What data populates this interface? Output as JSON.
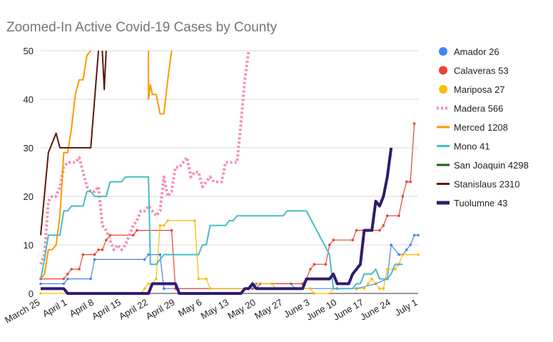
{
  "chart_data": {
    "type": "line",
    "title": "Zoomed-In Active Covid-19 Cases by County",
    "xlabel": "",
    "ylabel": "",
    "ylim": [
      0,
      50
    ],
    "yticks": [
      0,
      10,
      20,
      30,
      40,
      50
    ],
    "x_tick_labels": [
      "March 25",
      "April 1",
      "April 8",
      "April 15",
      "April 22",
      "April 29",
      "May 6",
      "May 13",
      "May 20",
      "May 27",
      "June 3",
      "June 10",
      "June 17",
      "June 24",
      "July 1"
    ],
    "x_tick_days": [
      0,
      7,
      14,
      21,
      28,
      35,
      42,
      49,
      56,
      63,
      70,
      77,
      84,
      91,
      98
    ],
    "grid": "horizontal",
    "legend_position": "right",
    "series": [
      {
        "name": "Amador 26",
        "color": "#4285f4",
        "style": "dotted",
        "points": [
          [
            0,
            2
          ],
          [
            6,
            2
          ],
          [
            7,
            3
          ],
          [
            13,
            3
          ],
          [
            14,
            7
          ],
          [
            27,
            7
          ],
          [
            28,
            8
          ],
          [
            31,
            8
          ],
          [
            32,
            1
          ],
          [
            55,
            1
          ],
          [
            56,
            2
          ],
          [
            65,
            2
          ],
          [
            66,
            1
          ],
          [
            77,
            1
          ],
          [
            82,
            1
          ],
          [
            87,
            2
          ],
          [
            90,
            3
          ],
          [
            91,
            10
          ],
          [
            93,
            8
          ],
          [
            94,
            8
          ],
          [
            95,
            9
          ],
          [
            96,
            10
          ],
          [
            97,
            12
          ],
          [
            98,
            12
          ]
        ]
      },
      {
        "name": "Calaveras 53",
        "color": "#ea4335",
        "style": "dotted",
        "points": [
          [
            0,
            3
          ],
          [
            6,
            3
          ],
          [
            7,
            4
          ],
          [
            8,
            5
          ],
          [
            10,
            5
          ],
          [
            11,
            8
          ],
          [
            14,
            8
          ],
          [
            15,
            9
          ],
          [
            16,
            9
          ],
          [
            17,
            11
          ],
          [
            18,
            12
          ],
          [
            24,
            12
          ],
          [
            25,
            13
          ],
          [
            34,
            13
          ],
          [
            35,
            1
          ],
          [
            56,
            1
          ],
          [
            57,
            2
          ],
          [
            68,
            2
          ],
          [
            69,
            3
          ],
          [
            70,
            5
          ],
          [
            71,
            6
          ],
          [
            74,
            6
          ],
          [
            75,
            10
          ],
          [
            76,
            11
          ],
          [
            81,
            11
          ],
          [
            82,
            13
          ],
          [
            88,
            13
          ],
          [
            89,
            14
          ],
          [
            90,
            16
          ],
          [
            93,
            16
          ],
          [
            94,
            20
          ],
          [
            95,
            23
          ],
          [
            96,
            23
          ],
          [
            97,
            35
          ]
        ]
      },
      {
        "name": "Mariposa 27",
        "color": "#fbbc04",
        "style": "dotted",
        "points": [
          [
            0,
            0
          ],
          [
            26,
            0
          ],
          [
            27,
            1
          ],
          [
            28,
            2
          ],
          [
            29,
            2
          ],
          [
            30,
            3
          ],
          [
            31,
            14
          ],
          [
            32,
            14
          ],
          [
            33,
            15
          ],
          [
            40,
            15
          ],
          [
            41,
            3
          ],
          [
            43,
            3
          ],
          [
            44,
            1
          ],
          [
            54,
            1
          ],
          [
            55,
            2
          ],
          [
            60,
            2
          ],
          [
            61,
            1
          ],
          [
            70,
            1
          ],
          [
            71,
            0
          ],
          [
            75,
            0
          ],
          [
            76,
            1
          ],
          [
            84,
            1
          ],
          [
            85,
            2
          ],
          [
            86,
            3
          ],
          [
            88,
            1
          ],
          [
            89,
            1
          ],
          [
            90,
            5
          ],
          [
            92,
            5
          ],
          [
            93,
            6
          ],
          [
            94,
            8
          ],
          [
            98,
            8
          ]
        ]
      },
      {
        "name": "Madera 566",
        "color": "#f48fb1",
        "style": "dashed",
        "points": [
          [
            0,
            6
          ],
          [
            1,
            8
          ],
          [
            2,
            19
          ],
          [
            3,
            20
          ],
          [
            4,
            20
          ],
          [
            5,
            22
          ],
          [
            6,
            26
          ],
          [
            7,
            27
          ],
          [
            8,
            27
          ],
          [
            9,
            27
          ],
          [
            10,
            28
          ],
          [
            11,
            25
          ],
          [
            12,
            22
          ],
          [
            13,
            21
          ],
          [
            14,
            21
          ],
          [
            15,
            22
          ],
          [
            16,
            14
          ],
          [
            17,
            13
          ],
          [
            18,
            11
          ],
          [
            19,
            9
          ],
          [
            20,
            10
          ],
          [
            21,
            9
          ],
          [
            22,
            10
          ],
          [
            23,
            12
          ],
          [
            24,
            14
          ],
          [
            25,
            15
          ],
          [
            26,
            17
          ],
          [
            27,
            17
          ],
          [
            28,
            18
          ],
          [
            29,
            17
          ],
          [
            30,
            16
          ],
          [
            31,
            17
          ],
          [
            32,
            24
          ],
          [
            33,
            20
          ],
          [
            34,
            21
          ],
          [
            35,
            26
          ],
          [
            36,
            26
          ],
          [
            37,
            27
          ],
          [
            38,
            28
          ],
          [
            39,
            24
          ],
          [
            40,
            25
          ],
          [
            41,
            25
          ],
          [
            42,
            22
          ],
          [
            43,
            23
          ],
          [
            44,
            24
          ],
          [
            45,
            23
          ],
          [
            46,
            23
          ],
          [
            47,
            23
          ],
          [
            48,
            27
          ],
          [
            49,
            27
          ],
          [
            50,
            27
          ],
          [
            51,
            27
          ],
          [
            52,
            35
          ],
          [
            53,
            44
          ],
          [
            54,
            51
          ]
        ]
      },
      {
        "name": "Merced 1208",
        "color": "#ff9800",
        "style": "solid",
        "points": [
          [
            0,
            3
          ],
          [
            1,
            4
          ],
          [
            2,
            9
          ],
          [
            3,
            9
          ],
          [
            4,
            10
          ],
          [
            5,
            16
          ],
          [
            6,
            29
          ],
          [
            7,
            29
          ],
          [
            8,
            34
          ],
          [
            9,
            41
          ],
          [
            10,
            44
          ],
          [
            11,
            44
          ],
          [
            12,
            49
          ],
          [
            13,
            51
          ],
          null,
          [
            28,
            51
          ],
          [
            28,
            40
          ],
          [
            28.5,
            43
          ],
          [
            29,
            41
          ],
          [
            30,
            41
          ],
          [
            31,
            37
          ],
          [
            32,
            37
          ],
          [
            33,
            44
          ],
          [
            34,
            51
          ]
        ]
      },
      {
        "name": "Mono 41",
        "color": "#46bdc6",
        "style": "solid",
        "points": [
          [
            0,
            3
          ],
          [
            1,
            7
          ],
          [
            2,
            12
          ],
          [
            5,
            12
          ],
          [
            6,
            17
          ],
          [
            7,
            17
          ],
          [
            8,
            18
          ],
          [
            11,
            18
          ],
          [
            12,
            21
          ],
          [
            13,
            21
          ],
          [
            14,
            20
          ],
          [
            17,
            20
          ],
          [
            18,
            23
          ],
          [
            21,
            23
          ],
          [
            22,
            24
          ],
          [
            28,
            24
          ],
          [
            28.5,
            6
          ],
          [
            30,
            6
          ],
          [
            32,
            8
          ],
          [
            41,
            8
          ],
          [
            42,
            10
          ],
          [
            43,
            10
          ],
          [
            44,
            14
          ],
          [
            48,
            14
          ],
          [
            49,
            15
          ],
          [
            50,
            15
          ],
          [
            51,
            16
          ],
          [
            63,
            16
          ],
          [
            64,
            17
          ],
          [
            69,
            17
          ],
          [
            75,
            8
          ],
          [
            76,
            1
          ],
          [
            81,
            1
          ],
          [
            82,
            2
          ],
          [
            83,
            2
          ],
          [
            84,
            4
          ],
          [
            86,
            4
          ],
          [
            87,
            5
          ],
          [
            88,
            3
          ],
          [
            90,
            3
          ],
          [
            91,
            4
          ],
          [
            92,
            6
          ],
          [
            94,
            6
          ]
        ]
      },
      {
        "name": "San Joaquin 4298",
        "color": "#1e5e1a",
        "style": "solid",
        "points": []
      },
      {
        "name": "Stanislaus 2310",
        "color": "#5b1a0e",
        "style": "solid",
        "points": [
          [
            0,
            12
          ],
          [
            2,
            29
          ],
          [
            3,
            31
          ],
          [
            4,
            33
          ],
          [
            5,
            30
          ],
          [
            13,
            30
          ],
          [
            14,
            40
          ],
          [
            15,
            51
          ],
          null,
          [
            16,
            51
          ],
          [
            16.5,
            42
          ],
          [
            17,
            51
          ]
        ]
      },
      {
        "name": "Tuolumne 43",
        "color": "#311b72",
        "style": "solid",
        "points": [
          [
            0,
            1
          ],
          [
            6,
            1
          ],
          [
            7,
            0
          ],
          [
            28,
            0
          ],
          [
            29,
            2
          ],
          [
            35,
            2
          ],
          [
            36,
            0
          ],
          [
            52,
            0
          ],
          [
            53,
            1
          ],
          [
            54,
            1
          ],
          [
            55,
            2
          ],
          [
            56,
            1
          ],
          [
            68,
            1
          ],
          [
            69,
            3
          ],
          [
            75,
            3
          ],
          [
            76,
            4
          ],
          [
            77,
            2
          ],
          [
            80,
            2
          ],
          [
            81,
            4
          ],
          [
            82,
            5
          ],
          [
            83,
            6
          ],
          [
            84,
            13
          ],
          [
            86,
            13
          ],
          [
            87,
            19
          ],
          [
            88,
            18
          ],
          [
            89,
            20
          ],
          [
            90,
            24
          ],
          [
            91,
            30
          ]
        ]
      }
    ]
  }
}
